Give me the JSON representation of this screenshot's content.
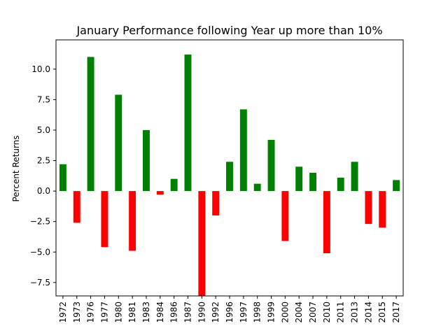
{
  "chart_data": {
    "type": "bar",
    "title": "January Performance following Year up more than 10%",
    "xlabel": "",
    "ylabel": "Percent Returns",
    "categories": [
      "1972",
      "1973",
      "1976",
      "1977",
      "1980",
      "1981",
      "1983",
      "1984",
      "1986",
      "1987",
      "1990",
      "1992",
      "1996",
      "1997",
      "1998",
      "1999",
      "2000",
      "2004",
      "2007",
      "2010",
      "2011",
      "2013",
      "2014",
      "2015",
      "2017"
    ],
    "values": [
      2.2,
      -2.6,
      11.0,
      -4.6,
      7.9,
      -4.9,
      5.0,
      -0.3,
      1.0,
      11.2,
      -8.6,
      -2.0,
      2.4,
      6.7,
      0.6,
      4.2,
      -4.1,
      2.0,
      1.5,
      -5.1,
      1.1,
      2.4,
      -2.7,
      -3.0,
      0.9
    ],
    "ylim": [
      -8.6,
      12.4
    ],
    "yticks": [
      -7.5,
      -5.0,
      -2.5,
      0.0,
      2.5,
      5.0,
      7.5,
      10.0
    ],
    "ytick_labels": [
      "−7.5",
      "−5.0",
      "−2.5",
      "0.0",
      "2.5",
      "5.0",
      "7.5",
      "10.0"
    ],
    "colors": {
      "positive": "#008000",
      "negative": "#ff0000"
    },
    "grid": false,
    "legend": "none"
  }
}
